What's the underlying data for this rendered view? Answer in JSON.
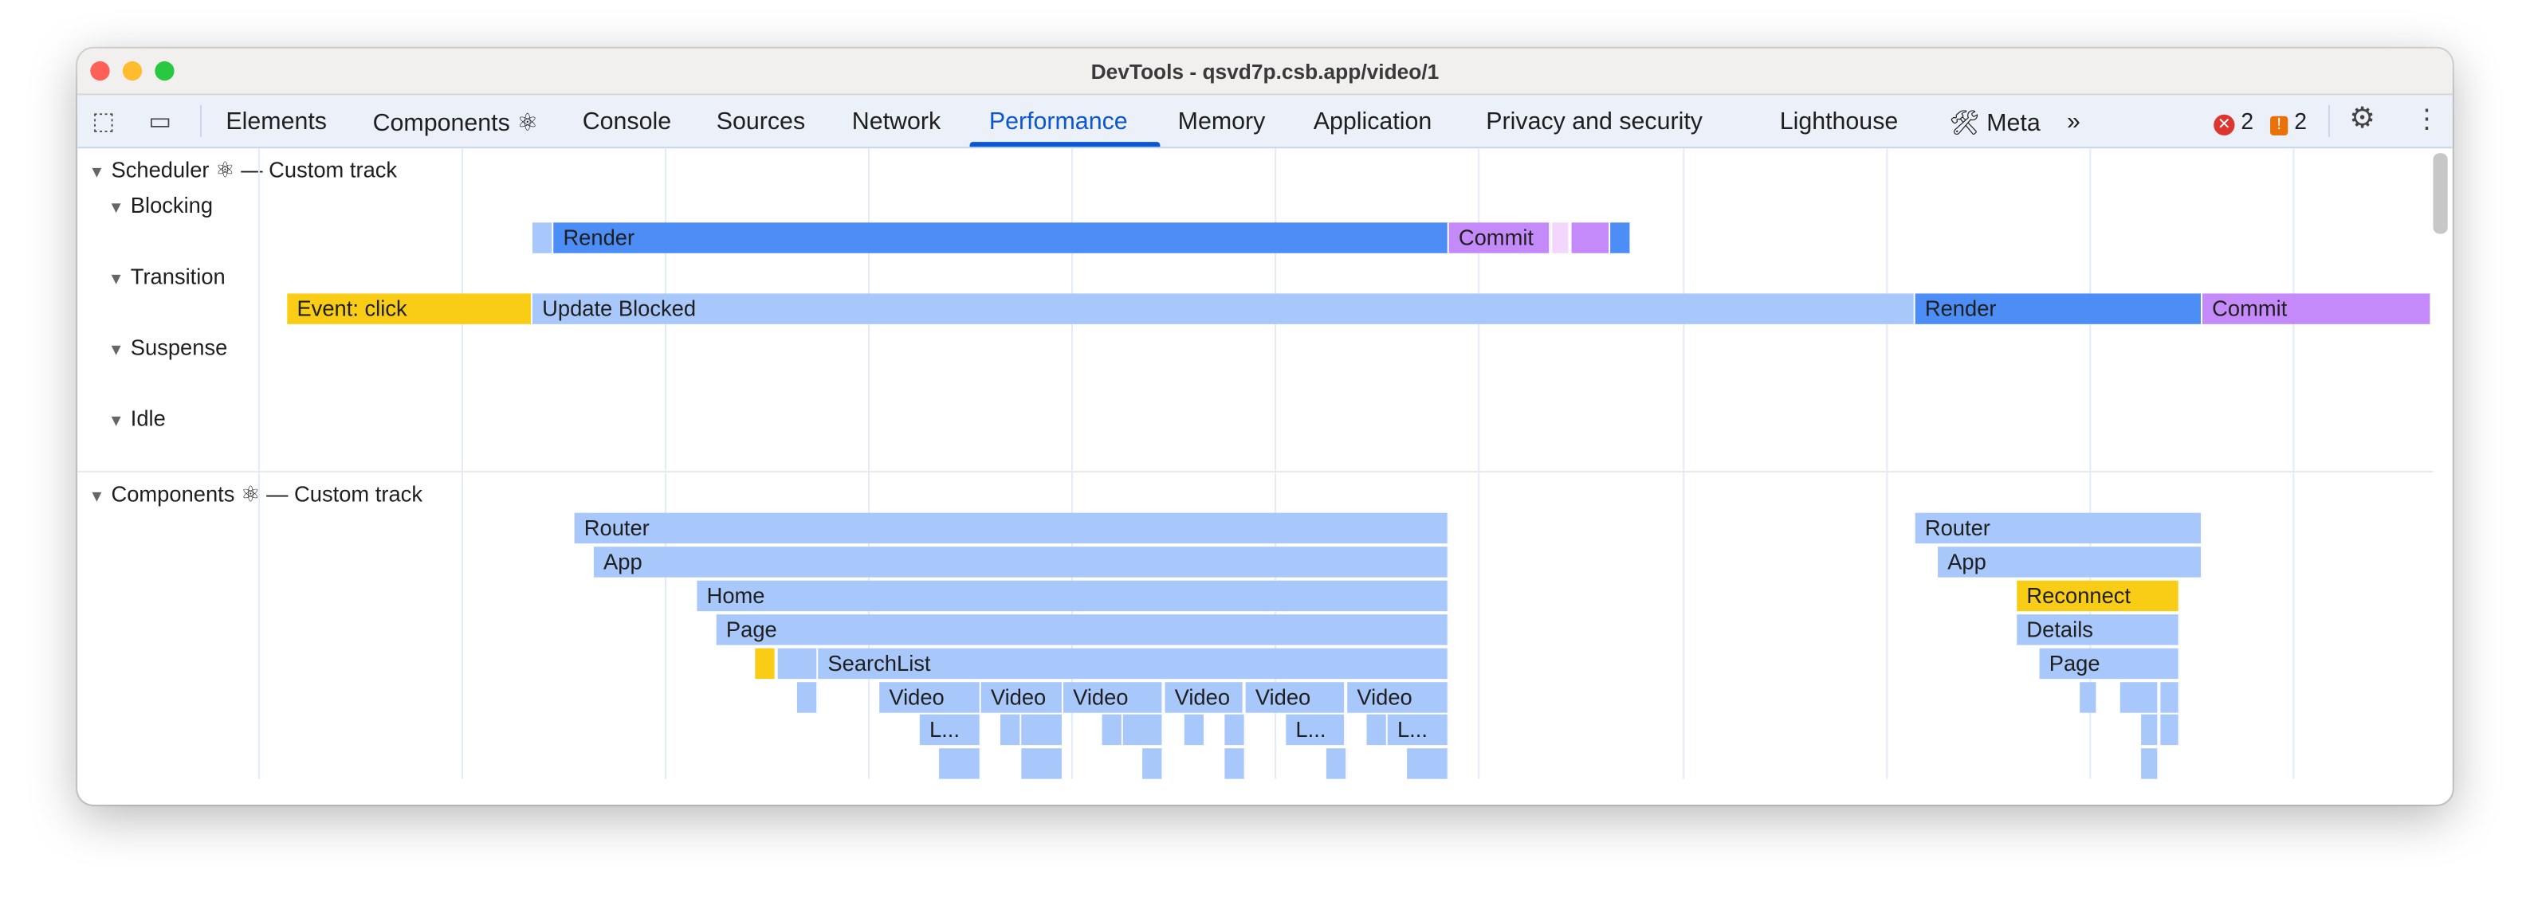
{
  "window": {
    "title": "DevTools - qsvd7p.csb.app/video/1"
  },
  "toolbar": {
    "tabs": [
      {
        "label": "Elements"
      },
      {
        "label": "Components ⚛"
      },
      {
        "label": "Console"
      },
      {
        "label": "Sources"
      },
      {
        "label": "Network"
      },
      {
        "label": "Performance",
        "active": true
      },
      {
        "label": "Memory"
      },
      {
        "label": "Application"
      },
      {
        "label": "Privacy and security"
      },
      {
        "label": "Lighthouse"
      },
      {
        "label": "🛠 Meta"
      }
    ],
    "more": "»",
    "errors": "2",
    "warnings": "2"
  },
  "colors": {
    "accent": "#0b57d0",
    "light_blue": "#a8c7fa",
    "blue": "#4c8df6",
    "purple": "#c58af9",
    "yellow": "#f9cc15",
    "error": "#dc362e",
    "warning": "#e8710a"
  },
  "tracks": {
    "scheduler": "Scheduler ⚛ — Custom track",
    "blocking": "Blocking",
    "transition": "Transition",
    "suspense": "Suspense",
    "idle": "Idle",
    "components": "Components ⚛ — Custom track"
  },
  "bars": {
    "render": "Render",
    "commit": "Commit",
    "event_click": "Event: click",
    "update_blocked": "Update Blocked",
    "router": "Router",
    "app": "App",
    "home": "Home",
    "page": "Page",
    "searchlist": "SearchList",
    "video": "Video",
    "l_trunc": "L...",
    "reconnect": "Reconnect",
    "details": "Details"
  }
}
